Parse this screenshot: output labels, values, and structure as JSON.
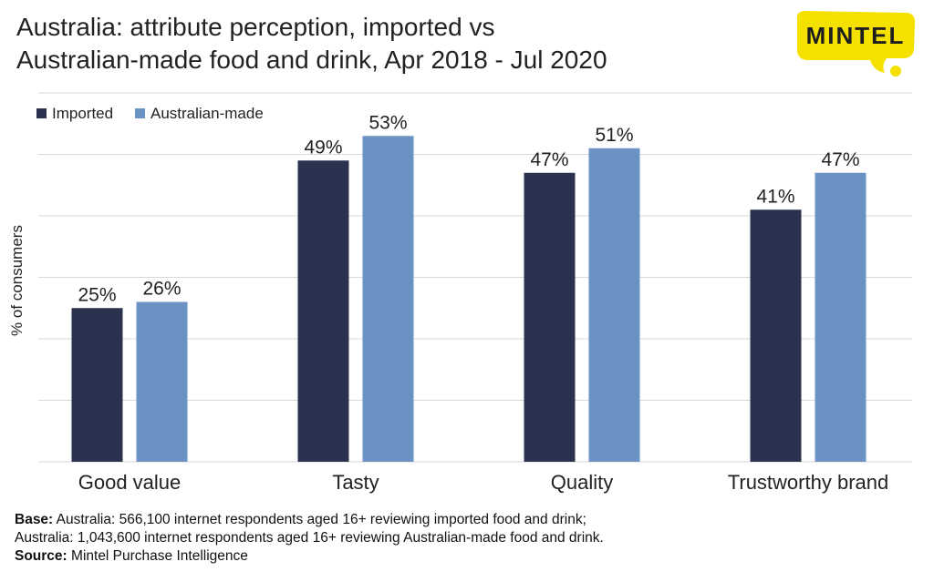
{
  "title": {
    "line1": "Australia: attribute perception, imported vs",
    "line2": "Australian-made food and drink, Apr 2018 - Jul 2020"
  },
  "logo": {
    "text": "MINTEL",
    "color": "#f5e100"
  },
  "colors": {
    "imported": "#2b3250",
    "australian_made": "#6a93c3",
    "grid": "#d9d9d9"
  },
  "chart_data": {
    "type": "bar",
    "categories": [
      "Good value",
      "Tasty",
      "Quality",
      "Trustworthy brand"
    ],
    "series": [
      {
        "name": "Imported",
        "values": [
          25,
          49,
          47,
          41
        ]
      },
      {
        "name": "Australian-made",
        "values": [
          26,
          53,
          51,
          47
        ]
      }
    ],
    "data_labels": [
      [
        "25%",
        "49%",
        "47%",
        "41%"
      ],
      [
        "26%",
        "53%",
        "51%",
        "47%"
      ]
    ],
    "ylabel": "% of consumers",
    "ylim": [
      0,
      60
    ],
    "grid": true,
    "legend": "top-left"
  },
  "footer": {
    "base_label": "Base:",
    "base_line1": "Australia: 566,100 internet respondents aged 16+ reviewing imported food and drink;",
    "base_line2": "Australia: 1,043,600 internet respondents aged 16+ reviewing Australian-made food and drink.",
    "source_label": "Source:",
    "source_text": "Mintel Purchase Intelligence"
  }
}
